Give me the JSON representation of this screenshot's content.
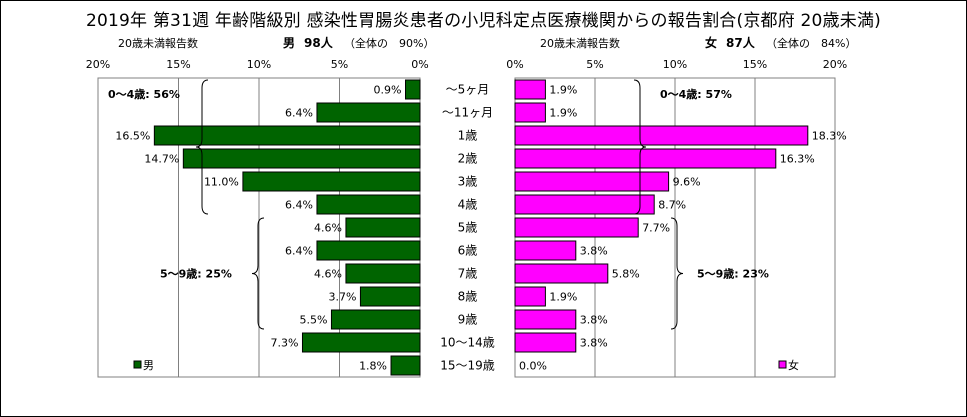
{
  "title": "2019年 第31週 年齢階級別 感染性胃腸炎患者の小児科定点医療機関からの報告割合(京都府 20歳未満)",
  "male_header": {
    "left": "20歳未満報告数",
    "sex": "男",
    "count": "98人",
    "total": "（全体の　90%）"
  },
  "female_header": {
    "left": "20歳未満報告数",
    "sex": "女",
    "count": "87人",
    "total": "（全体の　84%）"
  },
  "annotations": {
    "male_0_4": "0～4歳: 56%",
    "male_5_9": "5～9歳: 25%",
    "female_0_4": "0～4歳: 57%",
    "female_5_9": "5～9歳: 23%"
  },
  "chart_data": [
    {
      "type": "bar",
      "orientation": "horizontal",
      "direction": "right-to-left",
      "categories": [
        "～5ヶ月",
        "～11ヶ月",
        "1歳",
        "2歳",
        "3歳",
        "4歳",
        "5歳",
        "6歳",
        "7歳",
        "8歳",
        "9歳",
        "10～14歳",
        "15～19歳"
      ],
      "series": [
        {
          "name": "男",
          "values": [
            0.9,
            6.4,
            16.5,
            14.7,
            11.0,
            6.4,
            4.6,
            6.4,
            4.6,
            3.7,
            5.5,
            7.3,
            1.8
          ],
          "color": "#006400"
        }
      ],
      "data_labels": [
        "0.9%",
        "6.4%",
        "16.5%",
        "14.7%",
        "11.0%",
        "6.4%",
        "4.6%",
        "6.4%",
        "4.6%",
        "3.7%",
        "5.5%",
        "7.3%",
        "1.8%"
      ],
      "xlim": [
        0,
        20
      ],
      "ticks": [
        "20%",
        "15%",
        "10%",
        "5%",
        "0%"
      ],
      "legend": "bottom-left",
      "grid": true
    },
    {
      "type": "bar",
      "orientation": "horizontal",
      "direction": "left-to-right",
      "categories": [
        "～5ヶ月",
        "～11ヶ月",
        "1歳",
        "2歳",
        "3歳",
        "4歳",
        "5歳",
        "6歳",
        "7歳",
        "8歳",
        "9歳",
        "10～14歳",
        "15～19歳"
      ],
      "series": [
        {
          "name": "女",
          "values": [
            1.9,
            1.9,
            18.3,
            16.3,
            9.6,
            8.7,
            7.7,
            3.8,
            5.8,
            1.9,
            3.8,
            3.8,
            0.0
          ],
          "color": "#ff00ff"
        }
      ],
      "data_labels": [
        "1.9%",
        "1.9%",
        "18.3%",
        "16.3%",
        "9.6%",
        "8.7%",
        "7.7%",
        "3.8%",
        "5.8%",
        "1.9%",
        "3.8%",
        "3.8%",
        "0.0%"
      ],
      "xlim": [
        0,
        20
      ],
      "ticks": [
        "0%",
        "5%",
        "10%",
        "15%",
        "20%"
      ],
      "legend": "bottom-right",
      "grid": true
    }
  ]
}
